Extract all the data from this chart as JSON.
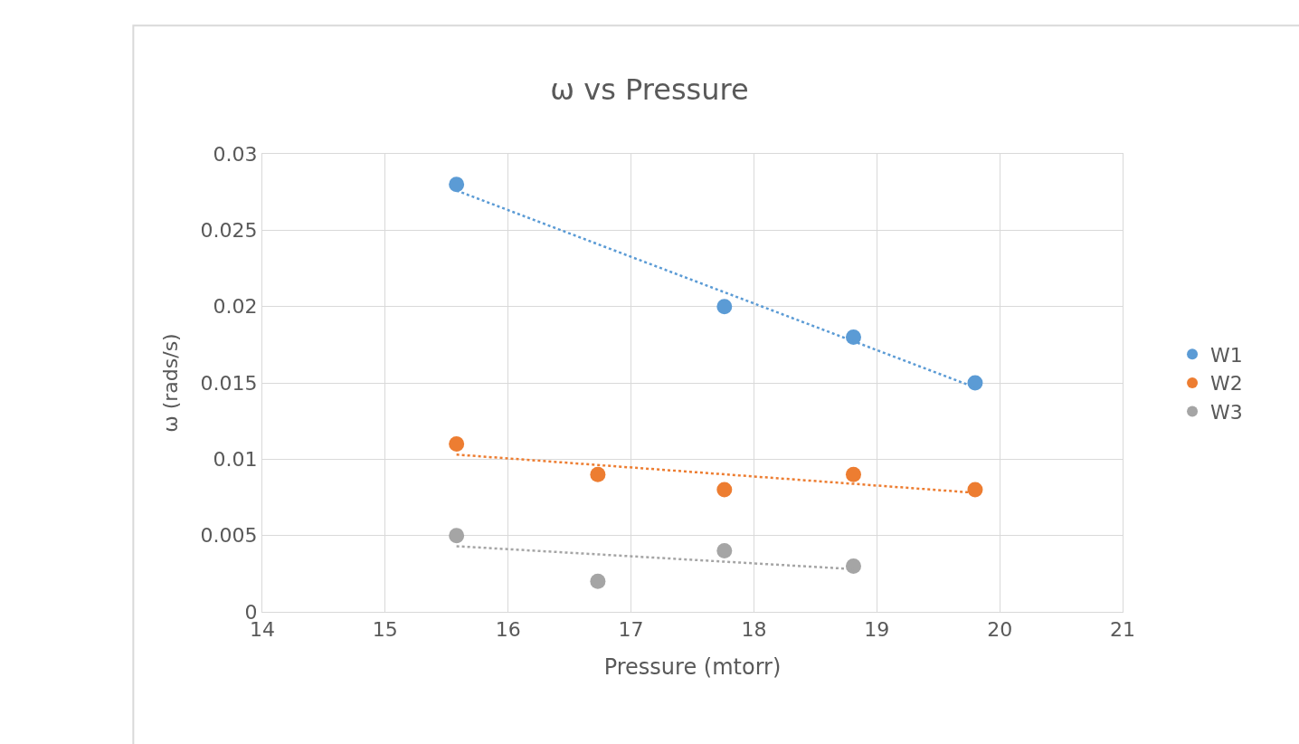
{
  "chart_data": {
    "type": "scatter",
    "title": "ω vs Pressure",
    "xlabel": "Pressure (mtorr)",
    "ylabel": "ω (rads/s)",
    "xlim": [
      14,
      21
    ],
    "xticks": [
      14,
      15,
      16,
      17,
      18,
      19,
      20,
      21
    ],
    "ylim": [
      0,
      0.03
    ],
    "yticks": [
      0,
      0.005,
      0.01,
      0.015,
      0.02,
      0.025,
      0.03
    ],
    "grid": true,
    "legend": "right",
    "marker": "circle",
    "series": [
      {
        "name": "W1",
        "color": "#5b9bd5",
        "x": [
          15.58,
          17.76,
          18.81,
          19.8
        ],
        "values": [
          0.028,
          0.02,
          0.018,
          0.015
        ]
      },
      {
        "name": "W2",
        "color": "#ed7d31",
        "x": [
          15.58,
          16.73,
          17.76,
          18.81,
          19.8
        ],
        "values": [
          0.011,
          0.009,
          0.008,
          0.009,
          0.008
        ]
      },
      {
        "name": "W3",
        "color": "#a5a5a5",
        "x": [
          15.58,
          16.73,
          17.76,
          18.81
        ],
        "values": [
          0.005,
          0.002,
          0.004,
          0.003
        ]
      },
      {
        "type": "line",
        "line_style": "dotted",
        "marker": "none",
        "color": "#5b9bd5",
        "x": [
          15.58,
          19.8
        ],
        "values": [
          0.0276,
          0.0147
        ]
      },
      {
        "type": "line",
        "line_style": "dotted",
        "marker": "none",
        "color": "#ed7d31",
        "x": [
          15.58,
          19.8
        ],
        "values": [
          0.0103,
          0.0078
        ]
      },
      {
        "type": "line",
        "line_style": "dotted",
        "marker": "none",
        "color": "#a5a5a5",
        "x": [
          15.58,
          18.81
        ],
        "values": [
          0.0043,
          0.0028
        ]
      }
    ]
  }
}
